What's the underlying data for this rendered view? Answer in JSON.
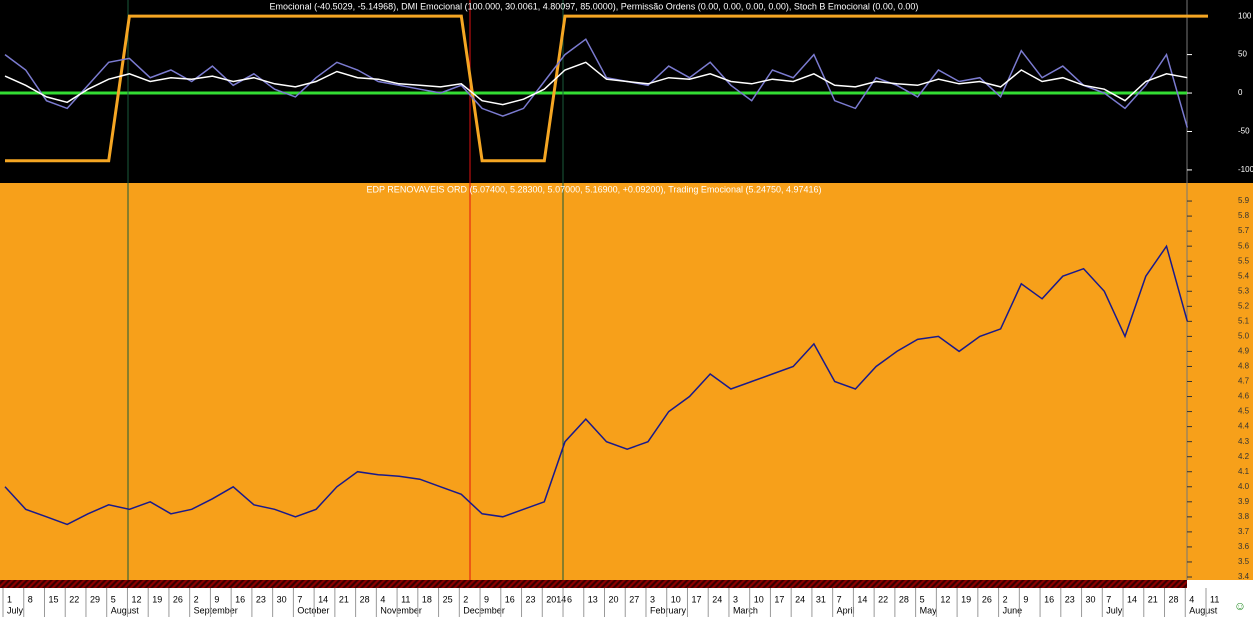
{
  "chart_data": [
    {
      "type": "line",
      "title": "Emocional (-40.5029, -5.14968), DMI Emocional (100.000, 30.0061, 4.80097, 85.0000), Permissão Ordens (0.00, 0.00, 0.00, 0.00), Stoch B Emocional (0.00, 0.00)",
      "ylim": [
        -117,
        121
      ],
      "yticks": [
        100,
        50,
        0,
        -50,
        -100
      ],
      "series": [
        {
          "color": "#f5a623",
          "values": [
            -88,
            -88,
            -88,
            -88,
            -88,
            -88,
            100,
            100,
            100,
            100,
            100,
            100,
            100,
            100,
            100,
            100,
            100,
            100,
            100,
            100,
            100,
            100,
            100,
            -88,
            -88,
            -88,
            -88,
            100,
            100,
            100,
            100,
            100,
            100,
            100,
            100,
            100,
            100,
            100,
            100,
            100,
            100,
            100,
            100,
            100,
            100,
            100,
            100,
            100,
            100,
            100,
            100,
            100,
            100,
            100,
            100,
            100,
            100,
            100,
            100
          ]
        },
        {
          "color": "#7b7bd0",
          "values": [
            50,
            30,
            -10,
            -20,
            10,
            40,
            45,
            20,
            30,
            15,
            35,
            10,
            25,
            5,
            -5,
            20,
            40,
            30,
            15,
            10,
            5,
            0,
            10,
            -20,
            -30,
            -20,
            15,
            50,
            70,
            20,
            15,
            10,
            35,
            20,
            40,
            10,
            -10,
            30,
            20,
            50,
            -10,
            -20,
            20,
            10,
            -5,
            30,
            15,
            20,
            -5,
            55,
            20,
            35,
            10,
            0,
            -20,
            10,
            50,
            -45,
            null
          ]
        },
        {
          "color": "#ffffff",
          "values": [
            22,
            10,
            -5,
            -12,
            5,
            18,
            25,
            15,
            20,
            18,
            22,
            15,
            20,
            12,
            8,
            15,
            28,
            20,
            18,
            12,
            10,
            8,
            12,
            -10,
            -15,
            -8,
            5,
            30,
            40,
            18,
            15,
            12,
            20,
            18,
            25,
            15,
            12,
            18,
            15,
            25,
            10,
            8,
            15,
            12,
            10,
            18,
            12,
            15,
            8,
            30,
            15,
            20,
            10,
            5,
            -10,
            15,
            25,
            20,
            null
          ]
        }
      ]
    },
    {
      "type": "line",
      "title": "EDP RENOVAVEIS ORD (5.07400, 5.28300, 5.07000, 5.16900, +0.09200), Trading Emocional (5.24750, 4.97416)",
      "categories": [
        "1",
        "8",
        "15",
        "22",
        "29",
        "5",
        "12",
        "19",
        "26",
        "2",
        "9",
        "16",
        "23",
        "30",
        "7",
        "14",
        "21",
        "28",
        "4",
        "11",
        "18",
        "25",
        "2",
        "9",
        "16",
        "23",
        "2014",
        "6",
        "13",
        "20",
        "27",
        "3",
        "10",
        "17",
        "24",
        "3",
        "10",
        "17",
        "24",
        "31",
        "7",
        "14",
        "22",
        "28",
        "5",
        "12",
        "19",
        "26",
        "2",
        "9",
        "16",
        "23",
        "30",
        "7",
        "14",
        "21",
        "28",
        "4",
        "11"
      ],
      "months": [
        "July",
        null,
        null,
        null,
        null,
        "August",
        null,
        null,
        null,
        "September",
        null,
        null,
        null,
        null,
        "October",
        null,
        null,
        null,
        "November",
        null,
        null,
        null,
        "December",
        null,
        null,
        null,
        null,
        null,
        null,
        null,
        null,
        "February",
        null,
        null,
        null,
        "March",
        null,
        null,
        null,
        null,
        "April",
        null,
        null,
        null,
        "May",
        null,
        null,
        null,
        "June",
        null,
        null,
        null,
        null,
        "July",
        null,
        null,
        null,
        "August",
        null
      ],
      "ylim": [
        3.38,
        6.02
      ],
      "yticks": [
        3.4,
        3.5,
        3.6,
        3.7,
        3.8,
        3.9,
        {
          "value": 4,
          "label": "4.0"
        },
        4.1,
        4.2,
        4.3,
        4.4,
        4.5,
        4.6,
        4.7,
        4.8,
        4.9,
        {
          "value": 5,
          "label": "5.0"
        },
        5.1,
        5.2,
        5.3,
        5.4,
        5.5,
        5.6,
        5.7,
        5.8,
        5.9
      ],
      "series": [
        {
          "color": "#1a1a8c",
          "values": [
            4.0,
            3.85,
            3.8,
            3.75,
            3.82,
            3.88,
            3.85,
            3.9,
            3.82,
            3.85,
            3.92,
            4.0,
            3.88,
            3.85,
            3.8,
            3.85,
            4.0,
            4.1,
            4.08,
            4.07,
            4.05,
            4.0,
            3.95,
            3.82,
            3.8,
            3.85,
            3.9,
            4.3,
            4.45,
            4.3,
            4.25,
            4.3,
            4.5,
            4.6,
            4.75,
            4.65,
            4.7,
            4.75,
            4.8,
            4.95,
            4.7,
            4.65,
            4.8,
            4.9,
            4.98,
            5.0,
            4.9,
            5.0,
            5.05,
            5.35,
            5.25,
            5.4,
            5.45,
            5.3,
            5.0,
            5.4,
            5.6,
            5.1,
            null
          ]
        }
      ]
    }
  ]
}
